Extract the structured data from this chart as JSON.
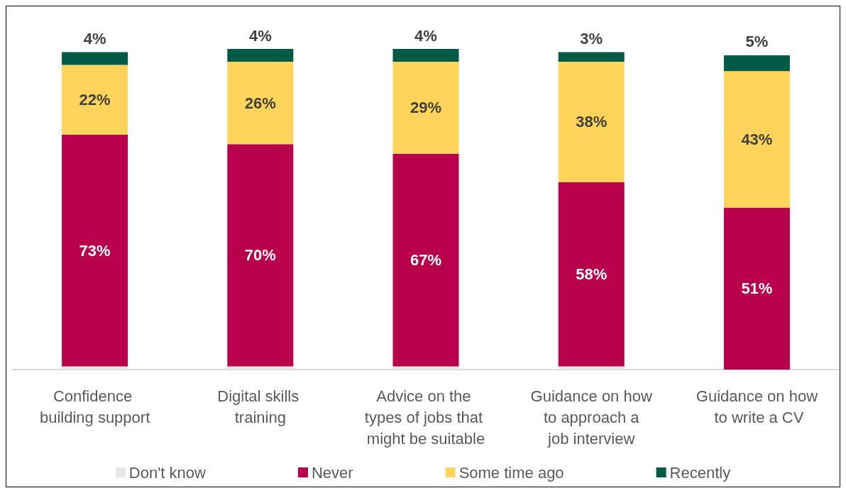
{
  "chart_data": {
    "type": "bar",
    "stacked": true,
    "legend": "bottom",
    "categories": [
      "Confidence building support",
      "Digital skills training",
      "Advice on the types of jobs that might be suitable",
      "Guidance on how to approach a job interview",
      "Guidance on how to write a CV"
    ],
    "series": [
      {
        "name": "Don't know",
        "color": "#e6e6e6",
        "values": [
          1,
          1,
          1,
          1,
          0
        ]
      },
      {
        "name": "Never",
        "color": "#b8004c",
        "values": [
          73,
          70,
          67,
          58,
          51
        ],
        "value_labels": [
          "73%",
          "70%",
          "67%",
          "58%",
          "51%"
        ]
      },
      {
        "name": "Some time ago",
        "color": "#ffd45a",
        "values": [
          22,
          26,
          29,
          38,
          43
        ],
        "value_labels": [
          "22%",
          "26%",
          "29%",
          "38%",
          "43%"
        ]
      },
      {
        "name": "Recently",
        "color": "#005a46",
        "values": [
          4,
          4,
          4,
          3,
          5
        ],
        "value_labels": [
          "4%",
          "4%",
          "4%",
          "3%",
          "5%"
        ]
      }
    ]
  }
}
